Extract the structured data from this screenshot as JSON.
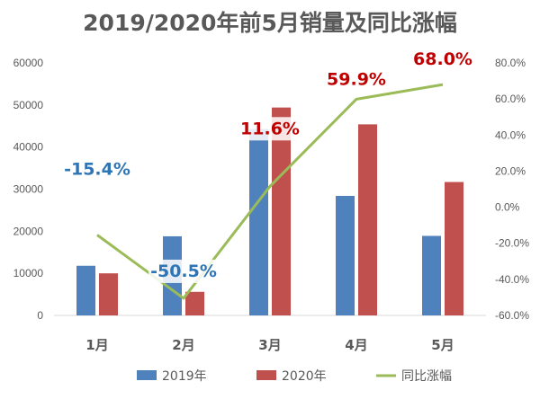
{
  "title": "2019/2020年前5月销量及同比涨幅",
  "chart_data": {
    "type": "bar",
    "title": "2019/2020年前5月销量及同比涨幅",
    "categories": [
      "1月",
      "2月",
      "3月",
      "4月",
      "5月"
    ],
    "series": [
      {
        "name": "2019年",
        "type": "bar",
        "axis": "left",
        "color": "#4f81bd",
        "values": [
          11800,
          18800,
          44300,
          28400,
          18900
        ]
      },
      {
        "name": "2020年",
        "type": "bar",
        "axis": "left",
        "color": "#c0504d",
        "values": [
          10000,
          5600,
          49400,
          45400,
          31700
        ]
      },
      {
        "name": "同比涨幅",
        "type": "line",
        "axis": "right",
        "color": "#9bbb59",
        "values": [
          -15.4,
          -50.5,
          11.6,
          59.9,
          68.0
        ],
        "labels": [
          "-15.4%",
          "-50.5%",
          "11.6%",
          "59.9%",
          "68.0%"
        ],
        "label_colors": [
          "#2e75b6",
          "#2e75b6",
          "#c00000",
          "#c00000",
          "#c00000"
        ]
      }
    ],
    "y_left": {
      "min": 0,
      "max": 60000,
      "ticks": [
        0,
        10000,
        20000,
        30000,
        40000,
        50000,
        60000
      ]
    },
    "y_right": {
      "min": -60,
      "max": 80,
      "ticks": [
        "-60.0%",
        "-40.0%",
        "-20.0%",
        "0.0%",
        "20.0%",
        "40.0%",
        "60.0%",
        "80.0%"
      ]
    },
    "grid": false,
    "legend_position": "bottom"
  }
}
